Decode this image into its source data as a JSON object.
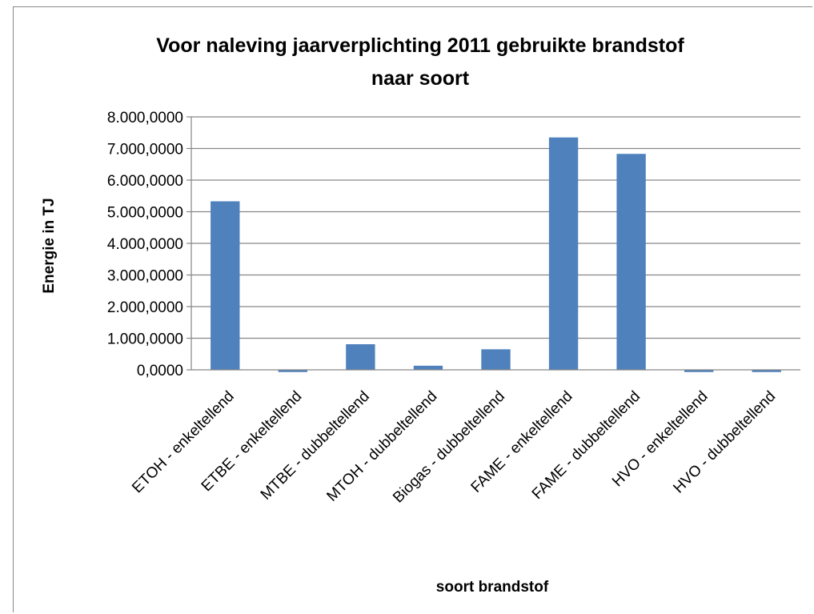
{
  "chart_data": {
    "type": "bar",
    "title_lines": [
      "Voor naleving jaarverplichting 2011 gebruikte brandstof",
      "naar soort"
    ],
    "xlabel": "soort brandstof",
    "ylabel": "Energie in TJ",
    "ylim": [
      0,
      8000
    ],
    "yticks": [
      0,
      1000,
      2000,
      3000,
      4000,
      5000,
      6000,
      7000,
      8000
    ],
    "ytick_labels": [
      "0,0000",
      "1.000,0000",
      "2.000,0000",
      "3.000,0000",
      "4.000,0000",
      "5.000,0000",
      "6.000,0000",
      "7.000,0000",
      "8.000,0000"
    ],
    "categories": [
      "ETOH - enkeltellend",
      "ETBE - enkeltellend",
      "MTBE - dubbeltellend",
      "MTOH - dubbeltellend",
      "Biogas - dubbeltellend",
      "FAME - enkeltellend",
      "FAME - dubbeltellend",
      "HVO - enkeltellend",
      "HVO - dubbeltellend"
    ],
    "values": [
      5330,
      -70,
      810,
      130,
      650,
      7350,
      6830,
      -70,
      -70
    ],
    "bar_color": "#4F81BD",
    "grid": true
  }
}
